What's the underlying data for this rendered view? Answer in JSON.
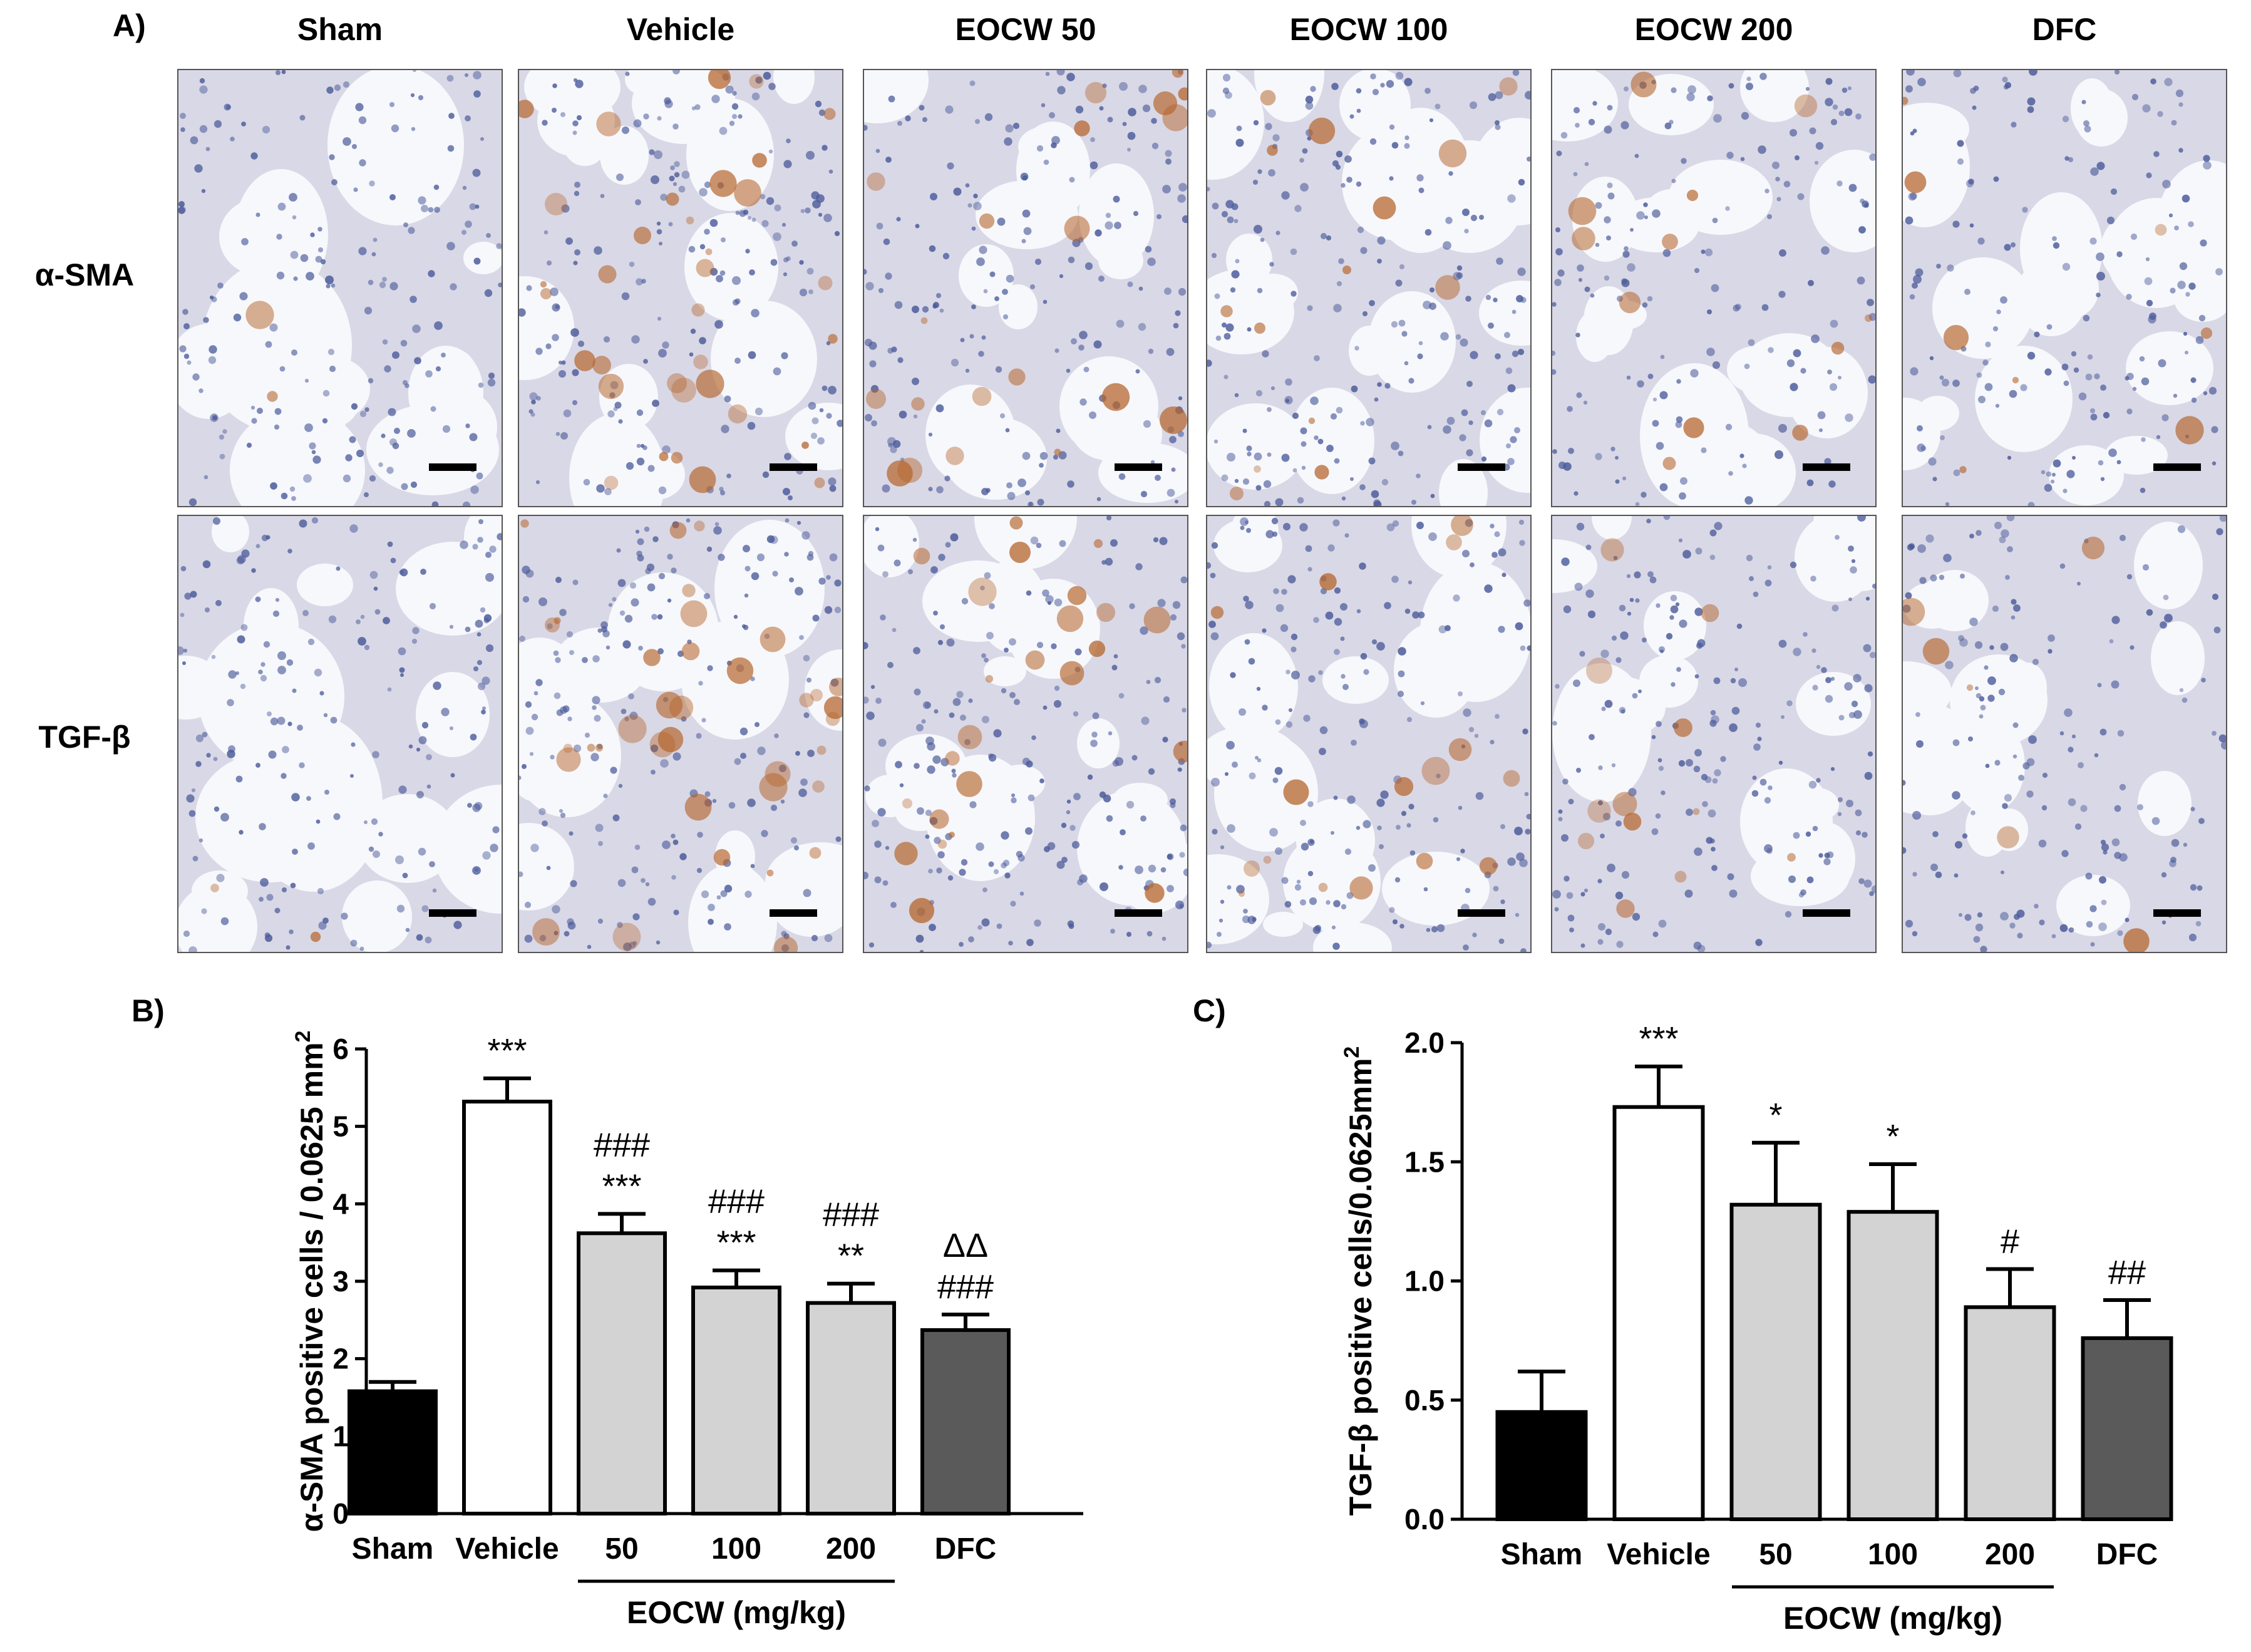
{
  "figure": {
    "panel_labels": {
      "a": "A)",
      "b": "B)",
      "c": "C)"
    },
    "columns": [
      "Sham",
      "Vehicle",
      "EOCW 50",
      "EOCW 100",
      "EOCW 200",
      "DFC"
    ],
    "rows": [
      "α-SMA",
      "TGF-β"
    ]
  },
  "micrographs": {
    "stain_color": "#b5642a",
    "nuclei_color": "#4a5a9a",
    "background_color": "#eef0f7",
    "staining_intensity": {
      "alpha_sma": [
        0.05,
        0.85,
        0.5,
        0.35,
        0.3,
        0.2
      ],
      "tgf_beta": [
        0.05,
        0.9,
        0.6,
        0.4,
        0.3,
        0.15
      ]
    }
  },
  "chart_data": [
    {
      "type": "bar",
      "panel": "B)",
      "ylabel": "α-SMA positive cells / 0.0625 mm",
      "ylabel_sup": "2",
      "categories": [
        "Sham",
        "Vehicle",
        "50",
        "100",
        "200",
        "DFC"
      ],
      "group_label": "EOCW (mg/kg)",
      "values": [
        1.58,
        5.32,
        3.62,
        2.92,
        2.72,
        2.37
      ],
      "errors": [
        0.12,
        0.3,
        0.25,
        0.22,
        0.25,
        0.2
      ],
      "annotations": [
        [],
        [
          "***"
        ],
        [
          "###",
          "***"
        ],
        [
          "###",
          "***"
        ],
        [
          "###",
          "**"
        ],
        [
          "ΔΔ",
          "###"
        ]
      ],
      "colors": [
        "#000000",
        "#ffffff",
        "#d3d3d3",
        "#d3d3d3",
        "#d3d3d3",
        "#5a5a5a"
      ],
      "yticks": [
        "0",
        "1",
        "2",
        "3",
        "4",
        "5",
        "6"
      ],
      "ylim": [
        0,
        6
      ]
    },
    {
      "type": "bar",
      "panel": "C)",
      "ylabel": "TGF-β positive cells/0.0625mm",
      "ylabel_sup": "2",
      "categories": [
        "Sham",
        "Vehicle",
        "50",
        "100",
        "200",
        "DFC"
      ],
      "group_label": "EOCW (mg/kg)",
      "values": [
        0.45,
        1.73,
        1.32,
        1.29,
        0.89,
        0.76
      ],
      "errors": [
        0.17,
        0.17,
        0.26,
        0.2,
        0.16,
        0.16
      ],
      "annotations": [
        [],
        [
          "***"
        ],
        [
          "*"
        ],
        [
          "*"
        ],
        [
          "#"
        ],
        [
          "##"
        ]
      ],
      "colors": [
        "#000000",
        "#ffffff",
        "#d3d3d3",
        "#d3d3d3",
        "#d3d3d3",
        "#5a5a5a"
      ],
      "yticks": [
        "0.0",
        "0.5",
        "1.0",
        "1.5",
        "2.0"
      ],
      "ylim": [
        0,
        2
      ]
    }
  ]
}
